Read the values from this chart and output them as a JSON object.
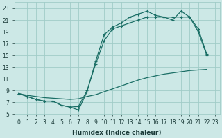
{
  "xlabel": "Humidex (Indice chaleur)",
  "bg_color": "#cce8e6",
  "grid_color": "#a0ccc8",
  "line_color": "#1a6e65",
  "xlim": [
    -0.5,
    23.5
  ],
  "ylim": [
    5,
    24
  ],
  "xticks": [
    0,
    1,
    2,
    3,
    4,
    5,
    6,
    7,
    8,
    9,
    10,
    11,
    12,
    13,
    14,
    15,
    16,
    17,
    18,
    19,
    20,
    21,
    22,
    23
  ],
  "yticks": [
    5,
    7,
    9,
    11,
    13,
    15,
    17,
    19,
    21,
    23
  ],
  "line1_x": [
    0,
    1,
    2,
    3,
    4,
    5,
    6,
    7,
    8,
    9,
    10,
    11,
    12,
    13,
    14,
    15,
    16,
    17,
    18,
    19,
    20,
    21,
    22
  ],
  "line1_y": [
    8.5,
    8.2,
    8.0,
    7.8,
    7.7,
    7.6,
    7.5,
    7.6,
    8.0,
    8.3,
    8.8,
    9.3,
    9.8,
    10.3,
    10.8,
    11.2,
    11.5,
    11.8,
    12.0,
    12.2,
    12.4,
    12.5,
    12.6
  ],
  "line2_x": [
    0,
    1,
    2,
    3,
    4,
    5,
    6,
    7,
    8,
    9,
    10,
    11,
    12,
    13,
    14,
    15,
    16,
    17,
    18,
    19,
    20,
    21,
    22
  ],
  "line2_y": [
    8.5,
    8.0,
    7.5,
    7.2,
    7.2,
    6.5,
    6.2,
    6.3,
    9.0,
    13.5,
    17.5,
    19.5,
    20.0,
    20.5,
    21.0,
    21.5,
    21.5,
    21.5,
    21.5,
    21.5,
    21.5,
    19.5,
    15.2
  ],
  "line3_x": [
    0,
    1,
    2,
    3,
    4,
    5,
    6,
    7,
    8,
    9,
    10,
    11,
    12,
    13,
    14,
    15,
    16,
    17,
    18,
    19,
    20,
    21,
    22
  ],
  "line3_y": [
    8.5,
    8.0,
    7.5,
    7.2,
    7.2,
    6.5,
    6.2,
    5.7,
    8.8,
    14.0,
    18.5,
    19.8,
    20.5,
    21.5,
    22.0,
    22.5,
    21.8,
    21.5,
    21.0,
    22.5,
    21.5,
    19.0,
    15.0
  ]
}
